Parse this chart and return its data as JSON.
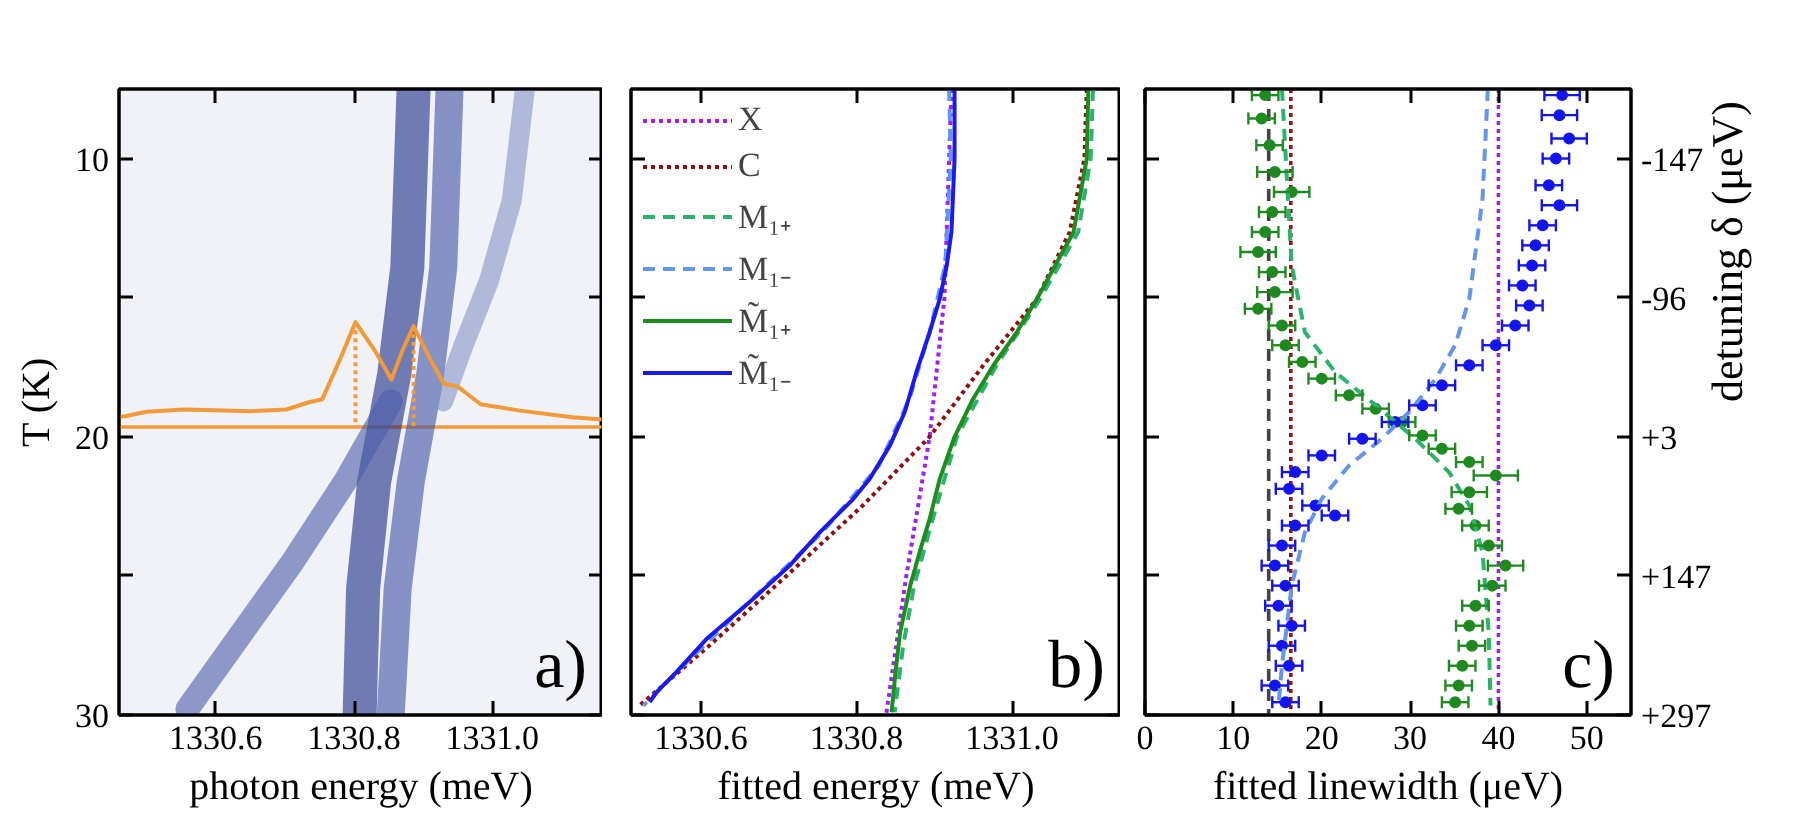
{
  "chart_data": [
    {
      "type": "line",
      "xlabel": "photon energy (meV)",
      "ylabel": "T (K)",
      "xlim": [
        1330.46,
        1331.16
      ],
      "xticks": [
        1330.6,
        1330.8,
        {
          "value": 1331.0,
          "label": "1331.0"
        }
      ],
      "ylim": [
        30,
        7.5
      ],
      "yticks": [
        10,
        {
          "value": 15,
          "label": null
        },
        20,
        {
          "value": 25,
          "label": null
        },
        30
      ],
      "grid": false,
      "legend": false,
      "ref_lines": [
        {
          "axis": "y",
          "value": 19.65,
          "color": "#f29a38",
          "line_style": "solid"
        }
      ],
      "annotations": [
        "a)"
      ],
      "series": [
        {
          "color": "#1b2a86",
          "x": [
            1330.886,
            1330.877,
            1330.858,
            1330.829,
            1330.813,
            1330.808
          ],
          "values": [
            7.5,
            13.92,
            17.76,
            21.61,
            25.46,
            30
          ]
        },
        {
          "color": "#3f51a3",
          "x": [
            1330.938,
            1330.929,
            1330.91,
            1330.882,
            1330.863,
            1330.853
          ],
          "values": [
            7.5,
            13.92,
            17.76,
            21.61,
            25.46,
            30
          ]
        },
        {
          "color": "#4b5ca8",
          "x": [
            1330.853,
            1330.787,
            1330.711,
            1330.635,
            1330.559
          ],
          "values": [
            18.73,
            21.61,
            24.5,
            27.14,
            29.78
          ]
        },
        {
          "color": "#8593c6",
          "x": [
            1331.047,
            1331.028,
            1330.995,
            1330.957,
            1330.929
          ],
          "values": [
            7.5,
            11.51,
            14.4,
            16.8,
            18.73
          ]
        },
        {
          "color": "#f29a38",
          "x": [
            1330.46,
            1330.469,
            1330.5,
            1330.554,
            1330.6,
            1330.65,
            1330.702,
            1330.735,
            1330.754,
            1330.78,
            1330.802,
            1330.83,
            1330.854,
            1330.87,
            1330.886,
            1330.91,
            1330.93,
            1330.949,
            1330.983,
            1331.04,
            1331.116,
            1331.16
          ],
          "values": [
            19.28,
            19.26,
            19.1,
            19.02,
            19.05,
            19.08,
            19.02,
            18.76,
            18.65,
            17.2,
            15.88,
            16.9,
            17.94,
            16.9,
            16.02,
            17.2,
            18.1,
            18.18,
            18.83,
            19.06,
            19.3,
            19.38
          ]
        },
        {
          "color": "#f29a38",
          "line_style": "dotted",
          "x": [
            1330.802,
            1330.802
          ],
          "values": [
            15.88,
            19.65
          ]
        },
        {
          "color": "#f29a38",
          "line_style": "dotted",
          "x": [
            1330.886,
            1330.886
          ],
          "values": [
            16.02,
            19.65
          ]
        }
      ]
    },
    {
      "type": "line",
      "xlabel": "fitted energy (meV)",
      "xlim": [
        1330.51,
        1331.14
      ],
      "xticks": [
        1330.6,
        1330.8,
        {
          "value": 1331.0,
          "label": "1331.0"
        }
      ],
      "ylim": [
        30,
        7.5
      ],
      "yticks": [
        10,
        15,
        20,
        25,
        30
      ],
      "tick_labels": "x",
      "grid": false,
      "legend": "top left",
      "annotations": [
        "b)"
      ],
      "series": [
        {
          "name": "X",
          "color": "#a020f0",
          "line_style": "dotted",
          "x": [
            1330.922,
            1330.919,
            1330.913,
            1330.894,
            1330.864,
            1330.838
          ],
          "values": [
            7.5,
            10,
            15,
            20,
            25,
            30
          ]
        },
        {
          "name": "C",
          "color": "#8b1010",
          "line_style": "dotted",
          "x": [
            1331.096,
            1331.093,
            1331.074,
            1331.032,
            1330.963,
            1330.894,
            1330.808,
            1330.706,
            1330.611,
            1330.521
          ],
          "values": [
            7.5,
            10,
            12.64,
            15.04,
            17.43,
            20,
            22.47,
            25.1,
            27.5,
            29.66
          ]
        },
        {
          "name": "M₁₊",
          "color": "#2cb36b",
          "line_style": "dashed",
          "x": [
            1331.104,
            1331.101,
            1331.085,
            1331.036,
            1330.98,
            1330.929,
            1330.898,
            1330.874,
            1330.86,
            1330.849
          ],
          "values": [
            7.5,
            10,
            12.64,
            15.04,
            17.43,
            20,
            22.95,
            25.35,
            27.5,
            29.9
          ]
        },
        {
          "name": "M₁₋",
          "color": "#6495ed",
          "line_style": "dashed",
          "x": [
            1330.919,
            1330.921,
            1330.914,
            1330.894,
            1330.868,
            1330.829,
            1330.756,
            1330.666,
            1330.577,
            1330.526
          ],
          "values": [
            7.5,
            10,
            13.84,
            16.24,
            18.63,
            21.03,
            23.43,
            25.83,
            28.23,
            29.66
          ]
        },
        {
          "name": "M̃₁₊",
          "color": "#1e8c1e",
          "line_style": "solid",
          "x": [
            1331.098,
            1331.096,
            1331.079,
            1331.032,
            1331.006,
            1330.976,
            1330.95,
            1330.926,
            1330.907,
            1330.894,
            1330.881,
            1330.869,
            1330.856,
            1330.851,
            1330.845
          ],
          "values": [
            7.5,
            10,
            12.64,
            15.04,
            16.24,
            17.43,
            18.63,
            20,
            21.51,
            22.95,
            24.15,
            25.35,
            27.03,
            28.23,
            29.9
          ]
        },
        {
          "name": "M̃₁₋",
          "color": "#1a1aee",
          "line_style": "solid",
          "x": [
            1330.926,
            1330.926,
            1330.922,
            1330.916,
            1330.907,
            1330.894,
            1330.877,
            1330.862,
            1330.843,
            1330.817,
            1330.796,
            1330.77,
            1330.753,
            1330.714,
            1330.667,
            1330.607,
            1330.568,
            1330.543,
            1330.534
          ],
          "values": [
            7.5,
            10,
            12.64,
            13.84,
            15.04,
            16.24,
            17.67,
            19.11,
            20.31,
            21.51,
            22.23,
            22.95,
            23.43,
            24.63,
            25.83,
            27.27,
            28.47,
            29.18,
            29.54
          ]
        }
      ]
    },
    {
      "type": "scatter",
      "xlabel": "fitted linewidth (μeV)",
      "y2label": "detuning δ (μeV)",
      "xlim": [
        0,
        55
      ],
      "xticks": [
        0,
        10,
        20,
        30,
        40,
        50
      ],
      "ylim": [
        30,
        7.5
      ],
      "yticks": [
        10,
        15,
        20,
        25,
        30
      ],
      "tick_labels": "x",
      "y2_categories": [
        "-147",
        "-96",
        "+3",
        "+147",
        "+297"
      ],
      "grid": false,
      "legend": false,
      "annotations": [
        "c)"
      ],
      "ref_lines": [
        {
          "axis": "x",
          "value": 14,
          "color": "#444444",
          "line_style": "dashed"
        },
        {
          "axis": "x",
          "value": 16.5,
          "color": "#a01010",
          "line_style": "dotted"
        },
        {
          "axis": "x",
          "value": 40,
          "color": "#a020f0",
          "line_style": "dotted"
        }
      ],
      "series": [
        {
          "color": "#1f8a1f",
          "marker": "circle",
          "x": [
            13.6,
            13.2,
            14.1,
            14.7,
            16.6,
            14.4,
            13.6,
            12.8,
            14.4,
            14.7,
            12.8,
            15.5,
            15.9,
            17.8,
            20.0,
            23.1,
            26.1,
            29.1,
            31.4,
            33.6,
            36.7,
            39.7,
            36.7,
            35.5,
            37.4,
            38.9,
            40.8,
            39.3,
            37.4,
            36.7,
            37.0,
            35.9,
            35.5,
            35.1
          ],
          "values": [
            7.72,
            8.56,
            9.52,
            10.48,
            11.2,
            11.92,
            12.64,
            13.36,
            14.08,
            14.8,
            15.4,
            16.0,
            16.71,
            17.31,
            17.91,
            18.51,
            18.99,
            19.47,
            19.95,
            20.43,
            20.91,
            21.39,
            21.99,
            22.59,
            23.19,
            23.91,
            24.63,
            25.35,
            26.07,
            26.79,
            27.51,
            28.23,
            28.94,
            29.54
          ],
          "xerrors": [
            1.5,
            1.5,
            1.5,
            2,
            2,
            1.5,
            1.5,
            2,
            1.5,
            2,
            1.5,
            1.5,
            1.5,
            1.5,
            1.5,
            1.5,
            1.5,
            1.5,
            1.5,
            1.5,
            1.5,
            2.5,
            2,
            1.5,
            1.5,
            1.5,
            2,
            1.5,
            1.5,
            1.5,
            1.5,
            1.5,
            1.5,
            1.5
          ]
        },
        {
          "color": "#1414ee",
          "marker": "circle",
          "x": [
            47.2,
            46.9,
            48.0,
            46.5,
            45.7,
            46.9,
            45.0,
            44.2,
            43.8,
            42.7,
            43.5,
            41.9,
            39.7,
            36.7,
            33.6,
            31.4,
            28.3,
            24.6,
            20.0,
            17.0,
            16.3,
            19.3,
            21.5,
            17.0,
            15.5,
            14.7,
            15.9,
            15.1,
            16.6,
            15.5,
            16.3,
            14.7,
            15.9
          ],
          "values": [
            7.72,
            8.44,
            9.28,
            10.0,
            10.96,
            11.68,
            12.4,
            13.12,
            13.84,
            14.56,
            15.28,
            16.0,
            16.71,
            17.43,
            18.15,
            18.87,
            19.47,
            20.07,
            20.67,
            21.27,
            21.87,
            22.47,
            22.83,
            23.19,
            23.91,
            24.63,
            25.35,
            26.07,
            26.79,
            27.51,
            28.23,
            28.94,
            29.54
          ],
          "xerrors": [
            2,
            2,
            2,
            1.5,
            1.5,
            2,
            1.5,
            1.5,
            1.5,
            1.5,
            1.5,
            1.5,
            1.5,
            1.5,
            1.5,
            1.5,
            1.5,
            1.5,
            1.5,
            1.5,
            1.5,
            1.5,
            1.5,
            1.5,
            1.5,
            1.5,
            1.5,
            1.5,
            1.5,
            1.5,
            1.5,
            1.5,
            1.5
          ]
        },
        {
          "type": "line",
          "color": "#2cb36b",
          "line_style": "dashed",
          "x": [
            15.5,
            16.6,
            18.1,
            21.5,
            26.1,
            30.6,
            34.4,
            36.7,
            38.2,
            38.9,
            39.1
          ],
          "values": [
            7.5,
            13.84,
            16.24,
            17.67,
            18.87,
            20.07,
            21.27,
            22.47,
            24.15,
            27.03,
            29.66
          ]
        },
        {
          "type": "line",
          "color": "#6495ed",
          "line_style": "dashed",
          "x": [
            38.8,
            38.2,
            36.7,
            35.1,
            32.9,
            29.9,
            26.8,
            23.1,
            20.0,
            18.1,
            16.6,
            15.5,
            15.1
          ],
          "values": [
            7.5,
            11.44,
            15.04,
            16.71,
            17.91,
            19.11,
            20.07,
            21.03,
            22.23,
            23.43,
            25.35,
            28.23,
            29.66
          ]
        }
      ]
    }
  ]
}
